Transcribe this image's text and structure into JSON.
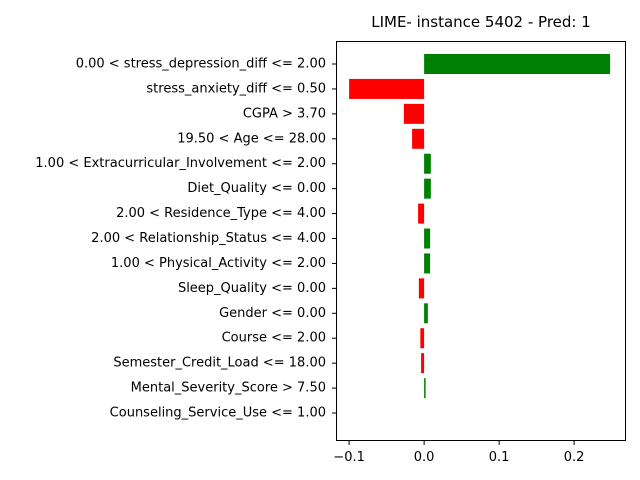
{
  "chart_data": {
    "type": "bar",
    "orientation": "horizontal",
    "title": "LIME- instance 5402 - Pred: 1",
    "xlabel": "",
    "ylabel": "",
    "xlim": [
      -0.1,
      0.25
    ],
    "xticks": [
      -0.1,
      0.0,
      0.1,
      0.2
    ],
    "xtick_labels": [
      "−0.1",
      "0.0",
      "0.1",
      "0.2"
    ],
    "grid": false,
    "positive_color": "#008000",
    "negative_color": "#ff0000",
    "categories": [
      "0.00 < stress_depression_diff <= 2.00",
      "stress_anxiety_diff <= 0.50",
      "CGPA > 3.70",
      "19.50 < Age <= 28.00",
      "1.00 < Extracurricular_Involvement <= 2.00",
      "Diet_Quality <= 0.00",
      "2.00 < Residence_Type <= 4.00",
      "2.00 < Relationship_Status <= 4.00",
      "1.00 < Physical_Activity <= 2.00",
      "Sleep_Quality <= 0.00",
      "Gender <= 0.00",
      "Course <= 2.00",
      "Semester_Credit_Load <= 18.00",
      "Mental_Severity_Score > 7.50",
      "Counseling_Service_Use <= 1.00"
    ],
    "values": [
      0.248,
      -0.1,
      -0.027,
      -0.016,
      0.009,
      0.009,
      -0.008,
      0.008,
      0.008,
      -0.007,
      0.005,
      -0.005,
      -0.004,
      0.002,
      0.0
    ]
  }
}
